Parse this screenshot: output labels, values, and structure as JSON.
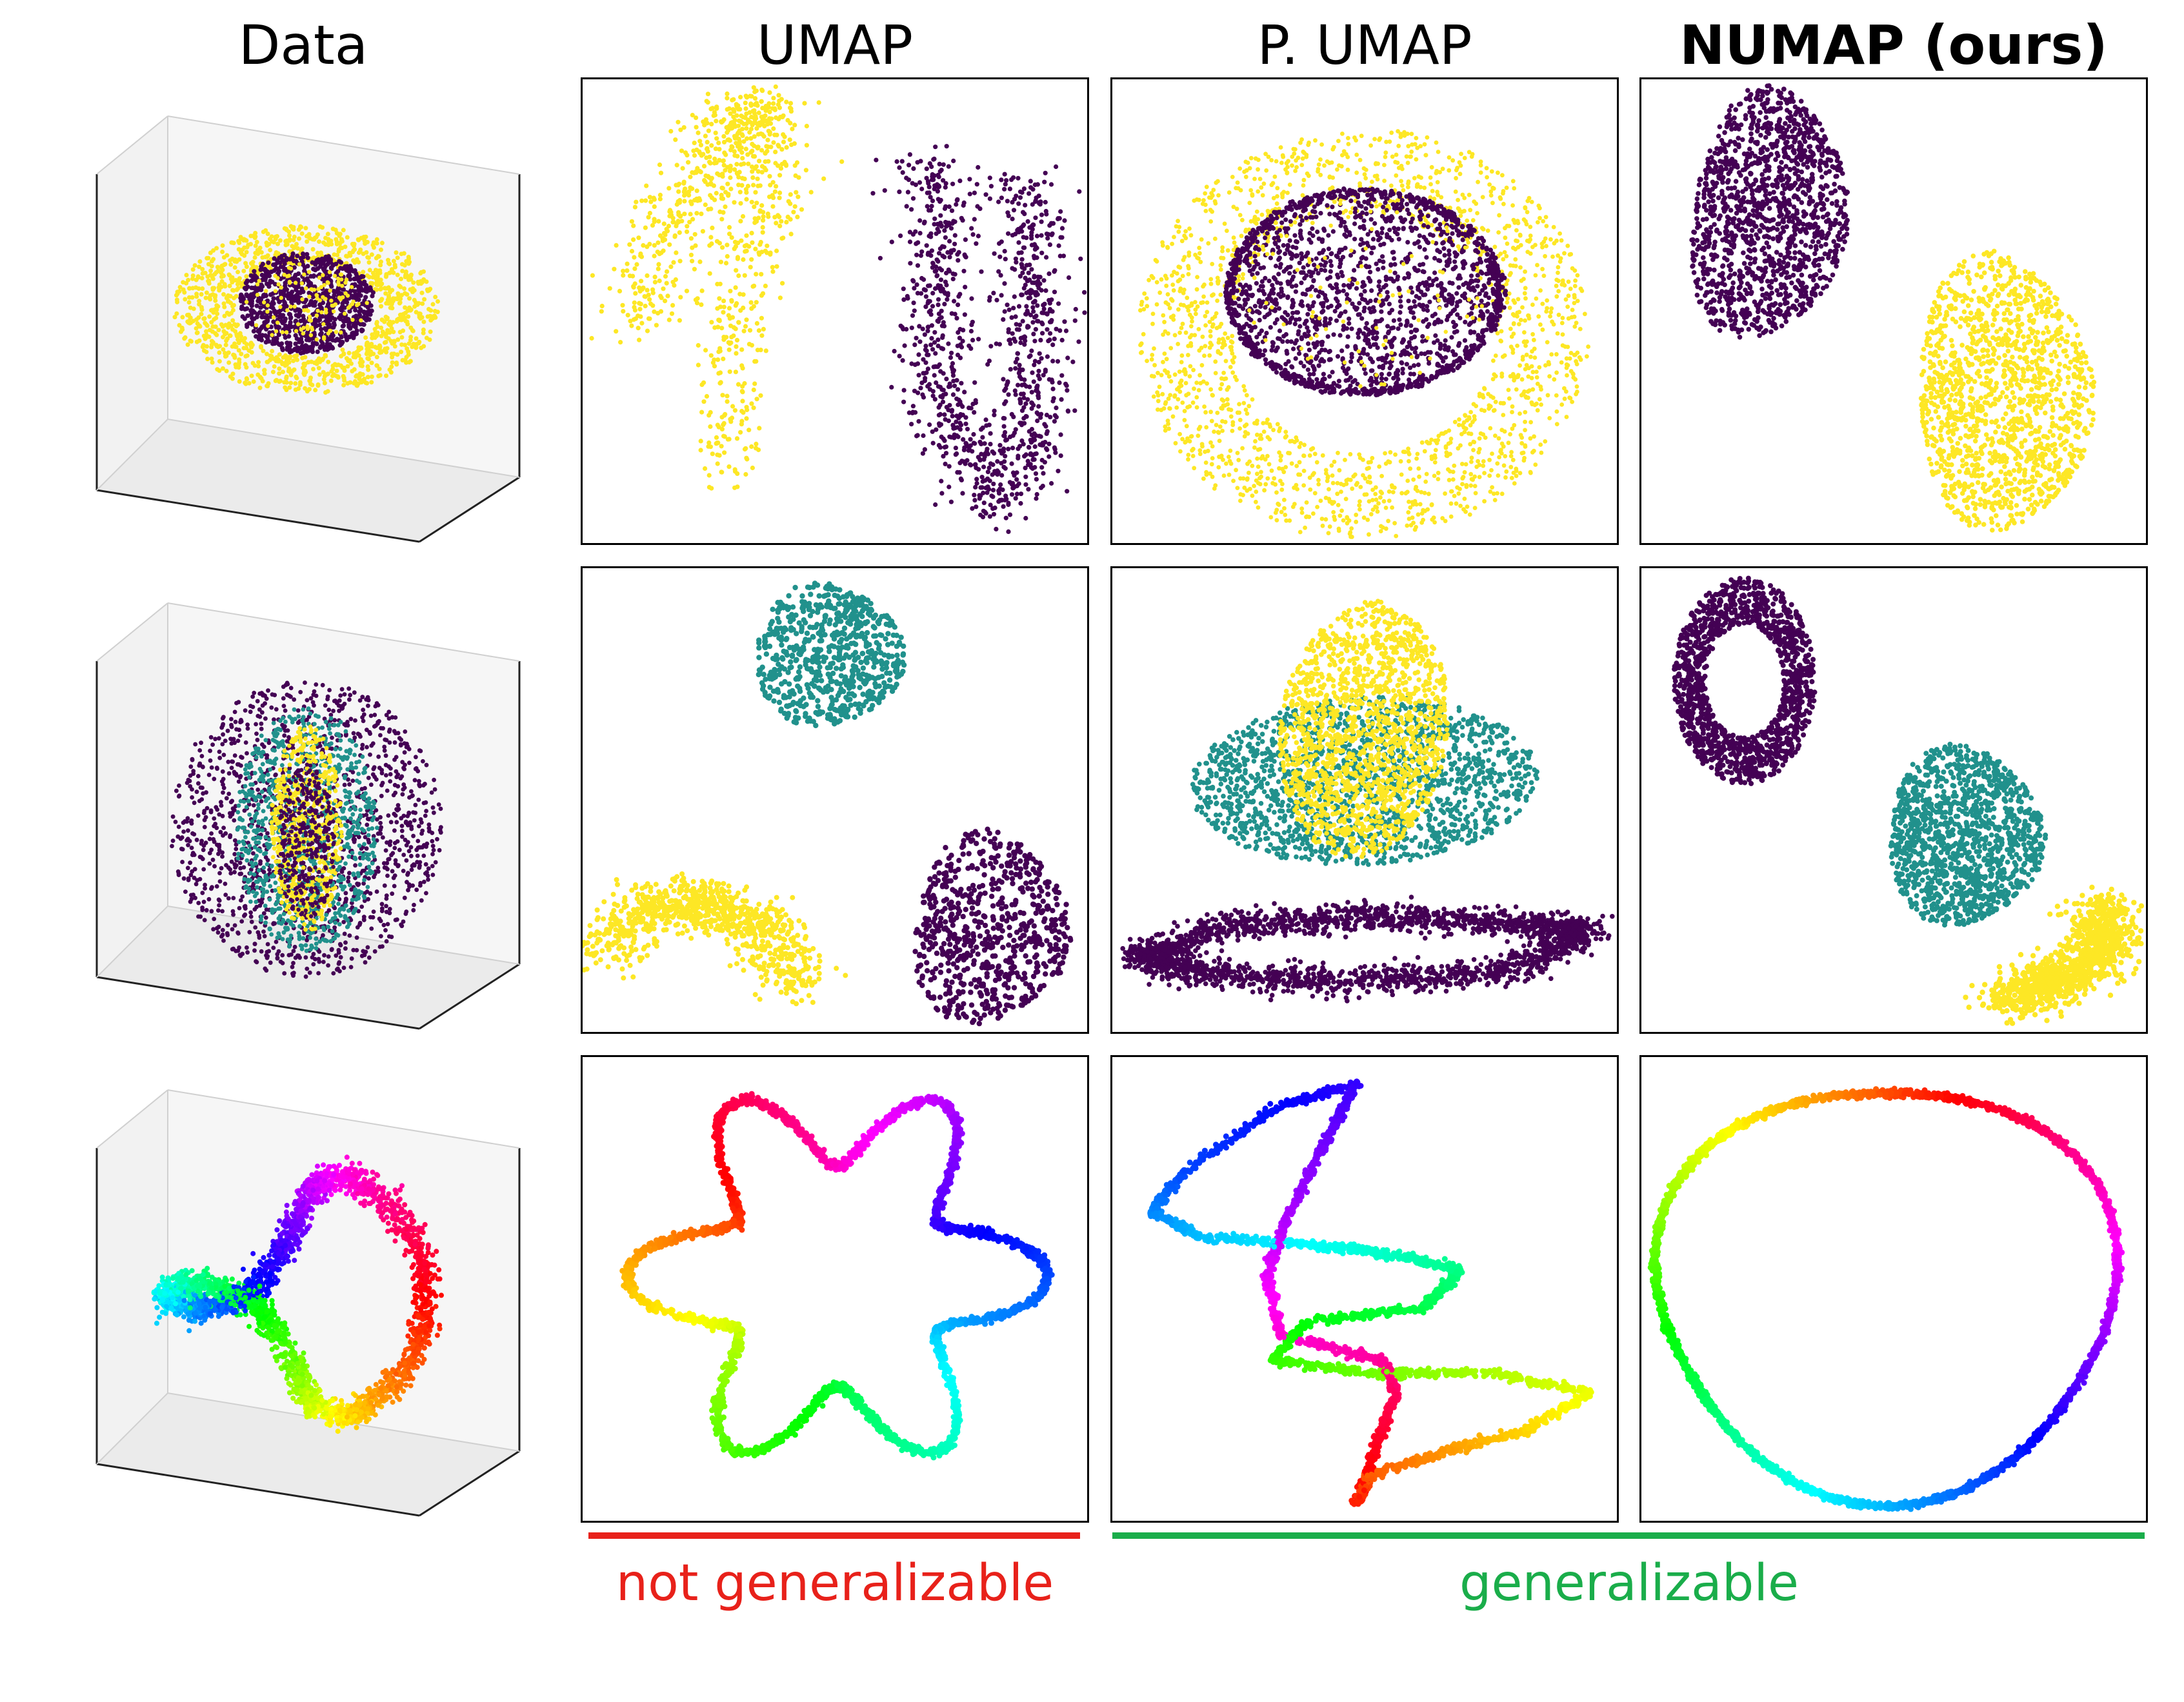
{
  "columns": {
    "data": "Data",
    "umap": "UMAP",
    "pumap": "P. UMAP",
    "numap": "NUMAP (ours)"
  },
  "brackets": {
    "not_generalizable": "not generalizable",
    "generalizable": "generalizable"
  },
  "colors": {
    "yellow": "#fde725",
    "teal": "#21918c",
    "purple": "#440154",
    "bracket_red": "#e8211a",
    "bracket_green": "#1aad4a"
  },
  "rows": [
    {
      "dataset": "concentric-spheres",
      "classes": [
        "purple",
        "yellow"
      ]
    },
    {
      "dataset": "concentric-cylinders",
      "classes": [
        "purple",
        "teal",
        "yellow"
      ]
    },
    {
      "dataset": "curve-colored-by-parameter",
      "colormap": "hsv"
    }
  ]
}
